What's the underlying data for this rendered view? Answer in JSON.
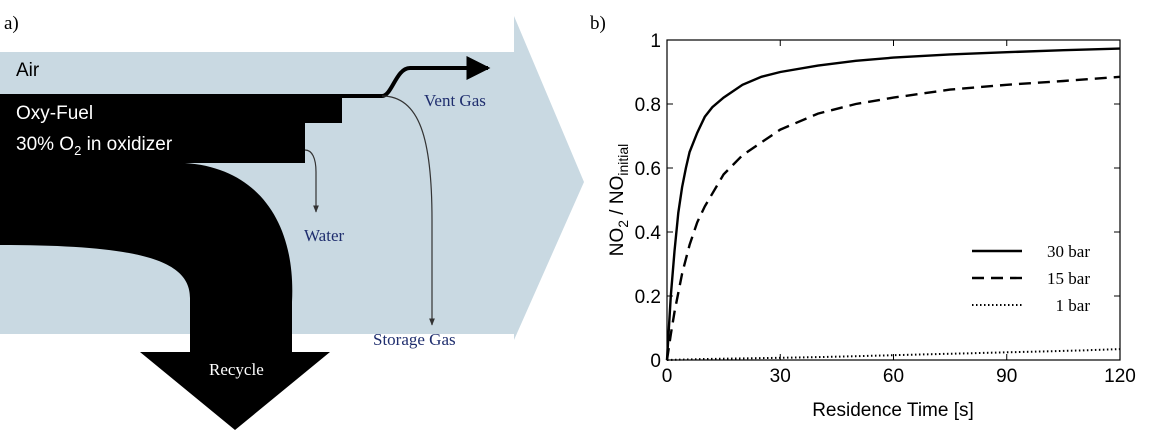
{
  "diagram": {
    "panel_label": "a)",
    "air_label": "Air",
    "oxyfuel_label": "Oxy-Fuel",
    "oxidizer_label_pre": "30% O",
    "oxidizer_label_sub": "2",
    "oxidizer_label_post": " in oxidizer",
    "vent_gas_label": "Vent Gas",
    "water_label": "Water",
    "storage_gas_label": "Storage Gas",
    "recycle_label": "Recycle",
    "colors": {
      "air_arrow": "#c9d9e2",
      "oxyfuel": "#000000",
      "text_blue": "#1f2e6e"
    }
  },
  "chart_data": {
    "panel_label": "b)",
    "type": "line",
    "xlabel": "Residence Time [s]",
    "ylabel": {
      "pre": "NO",
      "sub1": "2",
      "mid": " / NO",
      "sub2": "initial"
    },
    "xlim": [
      0,
      120
    ],
    "ylim": [
      0,
      1
    ],
    "xticks": [
      0,
      30,
      60,
      90,
      120
    ],
    "yticks": [
      0,
      0.2,
      0.4,
      0.6,
      0.8,
      1
    ],
    "ytick_labels": [
      "0",
      "0.2",
      "0.4",
      "0.6",
      "0.8",
      "1"
    ],
    "grid": false,
    "legend_position": "bottom-right",
    "series": [
      {
        "name": "30 bar",
        "style": "solid",
        "x": [
          0,
          0.5,
          1,
          2,
          3,
          4,
          5,
          6,
          8,
          10,
          12,
          15,
          20,
          25,
          30,
          40,
          50,
          60,
          75,
          90,
          105,
          120
        ],
        "y": [
          0.0,
          0.1,
          0.2,
          0.34,
          0.46,
          0.54,
          0.6,
          0.65,
          0.71,
          0.76,
          0.79,
          0.82,
          0.86,
          0.885,
          0.9,
          0.92,
          0.935,
          0.945,
          0.955,
          0.962,
          0.968,
          0.973
        ]
      },
      {
        "name": "15 bar",
        "style": "dashed",
        "x": [
          0,
          1,
          2,
          4,
          6,
          8,
          10,
          15,
          20,
          25,
          30,
          40,
          50,
          60,
          75,
          90,
          105,
          120
        ],
        "y": [
          0.0,
          0.08,
          0.15,
          0.27,
          0.36,
          0.43,
          0.48,
          0.58,
          0.64,
          0.68,
          0.72,
          0.77,
          0.8,
          0.82,
          0.845,
          0.86,
          0.872,
          0.885
        ]
      },
      {
        "name": "1 bar",
        "style": "dotted",
        "x": [
          0,
          10,
          20,
          30,
          40,
          50,
          60,
          70,
          80,
          90,
          100,
          110,
          120
        ],
        "y": [
          0.0,
          0.003,
          0.005,
          0.007,
          0.009,
          0.012,
          0.015,
          0.018,
          0.021,
          0.024,
          0.027,
          0.03,
          0.034
        ]
      }
    ]
  }
}
